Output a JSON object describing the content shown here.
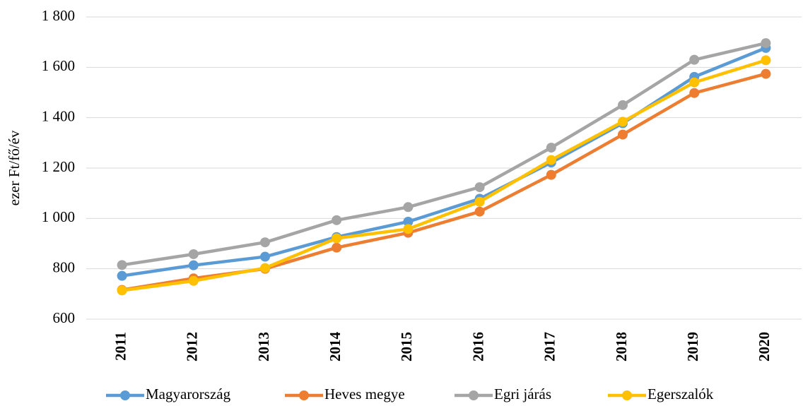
{
  "chart_data": {
    "type": "line",
    "y_label": "ezer Ft/fő/év",
    "categories": [
      "2011",
      "2012",
      "2013",
      "2014",
      "2015",
      "2016",
      "2017",
      "2018",
      "2019",
      "2020"
    ],
    "series": [
      {
        "name": "Magyarország",
        "color": "#5b9bd5",
        "values": [
          772,
          814,
          848,
          926,
          987,
          1078,
          1222,
          1378,
          1562,
          1677
        ]
      },
      {
        "name": "Heves megye",
        "color": "#ed7d31",
        "values": [
          716,
          762,
          800,
          884,
          943,
          1027,
          1173,
          1333,
          1498,
          1574
        ]
      },
      {
        "name": "Egri járás",
        "color": "#a5a5a5",
        "values": [
          815,
          858,
          905,
          993,
          1045,
          1124,
          1281,
          1450,
          1630,
          1696
        ]
      },
      {
        "name": "Egerszalók",
        "color": "#ffc000",
        "values": [
          714,
          752,
          803,
          921,
          958,
          1066,
          1232,
          1384,
          1540,
          1628
        ]
      }
    ],
    "ylim": [
      600,
      1800
    ],
    "yticks": [
      600,
      800,
      {
        "value": 1000,
        "label": "1 000"
      },
      {
        "value": 1200,
        "label": "1 200"
      },
      {
        "value": 1400,
        "label": "1 400"
      },
      {
        "value": 1600,
        "label": "1 600"
      },
      {
        "value": 1800,
        "label": "1 800"
      }
    ],
    "grid": true,
    "legend": "bottom"
  }
}
